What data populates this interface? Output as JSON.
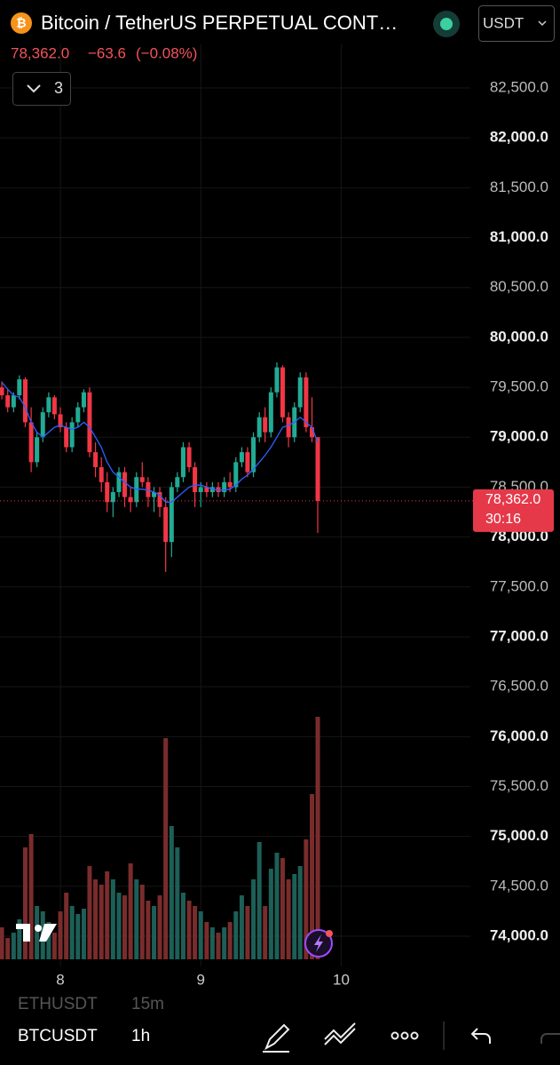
{
  "header": {
    "title": "Bitcoin / TetherUS PERPETUAL CONT…",
    "currency": "USDT"
  },
  "quote": {
    "price": "78,362.0",
    "change": "−63.6",
    "change_pct": "(−0.08%)"
  },
  "indicators_button": "3",
  "bottom_bar": {
    "symbol": "BTCUSDT",
    "interval": "1h",
    "prev_symbol": "ETHUSDT",
    "prev_interval": "15m"
  },
  "chart_data": {
    "type": "candlestick",
    "up_color": "#22ab94",
    "down_color": "#f23645",
    "volume_up_color": "#1d5f57",
    "volume_down_color": "#7a2c2c",
    "ma_color": "#2962ff",
    "grid": true,
    "x": [
      7.583,
      7.625,
      7.667,
      7.708,
      7.75,
      7.792,
      7.833,
      7.875,
      7.917,
      7.958,
      8,
      8.042,
      8.083,
      8.125,
      8.167,
      8.208,
      8.25,
      8.292,
      8.333,
      8.375,
      8.417,
      8.458,
      8.5,
      8.542,
      8.583,
      8.625,
      8.667,
      8.708,
      8.75,
      8.792,
      8.833,
      8.875,
      8.917,
      8.958,
      9,
      9.042,
      9.083,
      9.125,
      9.167,
      9.208,
      9.25,
      9.292,
      9.333,
      9.375,
      9.417,
      9.458,
      9.5,
      9.542,
      9.583,
      9.625,
      9.667,
      9.708,
      9.75,
      9.792,
      9.833
    ],
    "open": [
      79500,
      79420,
      79300,
      79420,
      79580,
      79150,
      78750,
      79000,
      79250,
      79400,
      79230,
      79100,
      78900,
      79150,
      79300,
      79450,
      78850,
      78700,
      78550,
      78350,
      78450,
      78650,
      78400,
      78350,
      78600,
      78550,
      78400,
      78450,
      78300,
      77950,
      78500,
      78600,
      78900,
      78700,
      78450,
      78500,
      78450,
      78500,
      78450,
      78550,
      78500,
      78750,
      78850,
      78650,
      79000,
      79200,
      79050,
      79450,
      79700,
      79200,
      79000,
      79300,
      79600,
      79100,
      79000
    ],
    "high": [
      79560,
      79480,
      79450,
      79620,
      79600,
      79300,
      79050,
      79300,
      79450,
      79420,
      79300,
      79150,
      79200,
      79350,
      79480,
      79500,
      78950,
      78800,
      78650,
      78500,
      78700,
      78700,
      78500,
      78650,
      78750,
      78600,
      78500,
      78500,
      78400,
      78550,
      78650,
      78950,
      78950,
      78750,
      78550,
      78550,
      78550,
      78550,
      78600,
      78650,
      78800,
      78900,
      78900,
      79050,
      79250,
      79300,
      79500,
      79750,
      79720,
      79250,
      79350,
      79650,
      79650,
      79400,
      79000
    ],
    "low": [
      79380,
      79250,
      79250,
      79380,
      79100,
      78650,
      78700,
      78950,
      79200,
      79180,
      79050,
      78850,
      78850,
      79100,
      79250,
      78800,
      78600,
      78450,
      78250,
      78200,
      78400,
      78300,
      78250,
      78300,
      78500,
      78300,
      78250,
      78200,
      77650,
      77800,
      78450,
      78550,
      78650,
      78300,
      78300,
      78400,
      78400,
      78400,
      78400,
      78450,
      78450,
      78700,
      78600,
      78600,
      78950,
      78950,
      79000,
      79400,
      79150,
      78900,
      78950,
      79250,
      79050,
      78950,
      78040
    ],
    "close": [
      79420,
      79300,
      79420,
      79580,
      79150,
      78750,
      79000,
      79250,
      79400,
      79230,
      79100,
      78900,
      79150,
      79300,
      79450,
      78850,
      78700,
      78550,
      78350,
      78450,
      78650,
      78400,
      78350,
      78600,
      78550,
      78400,
      78450,
      78300,
      77950,
      78500,
      78600,
      78900,
      78700,
      78450,
      78500,
      78450,
      78500,
      78450,
      78550,
      78500,
      78750,
      78850,
      78650,
      79000,
      79200,
      79050,
      79450,
      79700,
      79200,
      79000,
      79300,
      79600,
      79100,
      79000,
      78362
    ],
    "volume": [
      12,
      8,
      10,
      15,
      42,
      47,
      20,
      18,
      14,
      10,
      18,
      25,
      20,
      17,
      19,
      35,
      30,
      28,
      33,
      30,
      25,
      24,
      36,
      30,
      28,
      22,
      20,
      24,
      83,
      50,
      42,
      25,
      22,
      20,
      18,
      14,
      12,
      10,
      12,
      14,
      18,
      24,
      20,
      30,
      44,
      20,
      34,
      40,
      38,
      30,
      32,
      35,
      45,
      62,
      91
    ],
    "ma": [
      79550,
      79480,
      79420,
      79400,
      79300,
      79150,
      79050,
      79000,
      79050,
      79100,
      79120,
      79100,
      79080,
      79100,
      79150,
      79100,
      79000,
      78900,
      78750,
      78650,
      78600,
      78550,
      78500,
      78480,
      78480,
      78470,
      78450,
      78420,
      78350,
      78350,
      78400,
      78450,
      78500,
      78520,
      78520,
      78500,
      78480,
      78470,
      78470,
      78480,
      78520,
      78580,
      78620,
      78680,
      78750,
      78820,
      78900,
      79000,
      79100,
      79120,
      79150,
      79200,
      79150,
      79100,
      78950
    ],
    "xlim": [
      7.57,
      10.92
    ],
    "xticks": [
      8,
      9,
      10
    ],
    "ylim": [
      73769,
      82669
    ],
    "yticks": [
      {
        "value": 82500,
        "label": "82,500.0"
      },
      {
        "value": 82000,
        "label": "82,000.0"
      },
      {
        "value": 81500,
        "label": "81,500.0"
      },
      {
        "value": 81000,
        "label": "81,000.0"
      },
      {
        "value": 80500,
        "label": "80,500.0"
      },
      {
        "value": 80000,
        "label": "80,000.0"
      },
      {
        "value": 79500,
        "label": "79,500.0"
      },
      {
        "value": 79000,
        "label": "79,000.0"
      },
      {
        "value": 78500,
        "label": "78,500.0"
      },
      {
        "value": 78000,
        "label": "78,000.0"
      },
      {
        "value": 77500,
        "label": "77,500.0"
      },
      {
        "value": 77000,
        "label": "77,000.0"
      },
      {
        "value": 76500,
        "label": "76,500.0"
      },
      {
        "value": 76000,
        "label": "76,000.0"
      },
      {
        "value": 75500,
        "label": "75,500.0"
      },
      {
        "value": 75000,
        "label": "75,000.0"
      },
      {
        "value": 74500,
        "label": "74,500.0"
      },
      {
        "value": 74000,
        "label": "74,000.0"
      }
    ],
    "vlim": [
      0,
      100
    ],
    "last_price": {
      "value": 78362,
      "label": "78,362.0"
    },
    "countdown": "30:16"
  }
}
